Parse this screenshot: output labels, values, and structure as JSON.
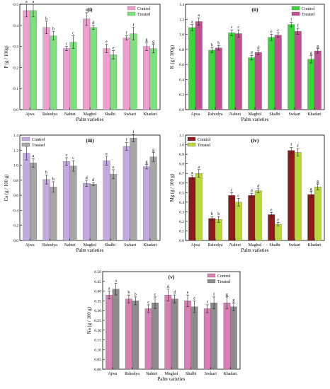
{
  "chart_data": [
    {
      "panel": "(i)",
      "type": "bar",
      "xlabel": "Palm varieties",
      "ylabel": "P (g / 100g)",
      "categories": [
        "Ajwa",
        "Rshodya",
        "Nabtet",
        "Maghol",
        "Shalbi",
        "Swkari",
        "Khadari"
      ],
      "ylim": [
        0.0,
        0.5
      ],
      "yticks": [
        "0.0",
        "0.1",
        "0.2",
        "0.3",
        "0.4",
        "0.5"
      ],
      "legend_position": "top-right",
      "colors": [
        "#ee9fd0",
        "#7ee07e"
      ],
      "series": [
        {
          "name": "Control",
          "values": [
            0.47,
            0.39,
            0.29,
            0.43,
            0.29,
            0.34,
            0.3
          ],
          "errors": [
            0.03,
            0.03,
            0.01,
            0.03,
            0.02,
            0.01,
            0.02
          ],
          "letters": [
            "a",
            "b",
            "c",
            "d",
            "e",
            "f",
            "g"
          ]
        },
        {
          "name": "Treated",
          "values": [
            0.47,
            0.35,
            0.32,
            0.39,
            0.26,
            0.36,
            0.29
          ],
          "errors": [
            0.03,
            0.02,
            0.03,
            0.01,
            0.02,
            0.03,
            0.02
          ],
          "letters": [
            "a",
            "b",
            "c",
            "d",
            "e",
            "f",
            "g"
          ]
        }
      ]
    },
    {
      "panel": "(ii)",
      "type": "bar",
      "xlabel": "Palm varieties",
      "ylabel": "K (g / 100g)",
      "categories": [
        "Ajwa",
        "Rshodya",
        "Nabtet",
        "Maghol",
        "Shalbi",
        "Swkari",
        "Khadari"
      ],
      "ylim": [
        0.0,
        1.4
      ],
      "yticks": [
        "0.0",
        "0.2",
        "0.4",
        "0.6",
        "0.8",
        "1.0",
        "1.2",
        "1.4"
      ],
      "legend_position": "top-right",
      "colors": [
        "#3bd63b",
        "#c0508f"
      ],
      "series": [
        {
          "name": "Control",
          "values": [
            1.09,
            0.79,
            1.02,
            0.69,
            0.96,
            1.13,
            0.67
          ],
          "errors": [
            0.04,
            0.03,
            0.04,
            0.03,
            0.04,
            0.03,
            0.05
          ],
          "letters": [
            "a",
            "b",
            "c",
            "d",
            "e",
            "f",
            "g"
          ]
        },
        {
          "name": "Treated",
          "values": [
            1.17,
            0.82,
            1.01,
            0.76,
            0.99,
            1.04,
            0.78
          ],
          "errors": [
            0.05,
            0.03,
            0.05,
            0.03,
            0.03,
            0.04,
            0.03
          ],
          "letters": [
            "a",
            "b",
            "c",
            "d",
            "e",
            "f",
            "g"
          ]
        }
      ]
    },
    {
      "panel": "(iii)",
      "type": "bar",
      "xlabel": "Palm varieties",
      "ylabel": "Ca (g / 100 g)",
      "categories": [
        "Ajwa",
        "Rshodya",
        "Nabtet",
        "Maghol",
        "Shalbi",
        "Swkari",
        "Khadari"
      ],
      "ylim": [
        0.0,
        1.4
      ],
      "yticks": [
        "0.0",
        "0.2",
        "0.4",
        "0.6",
        "0.8",
        "1.0",
        "1.2",
        "1.4"
      ],
      "legend_position": "top-left",
      "colors": [
        "#c4a8e0",
        "#a6a6a6"
      ],
      "series": [
        {
          "name": "Control",
          "values": [
            1.16,
            0.81,
            1.05,
            0.76,
            1.06,
            1.25,
            0.98
          ],
          "errors": [
            0.09,
            0.06,
            0.05,
            0.04,
            0.06,
            0.05,
            0.03
          ],
          "letters": [
            "a",
            "b",
            "c",
            "d",
            "e",
            "f",
            "g"
          ]
        },
        {
          "name": "Treated",
          "values": [
            1.03,
            0.71,
            0.99,
            0.75,
            0.88,
            1.36,
            1.11
          ],
          "errors": [
            0.06,
            0.07,
            0.07,
            0.02,
            0.06,
            0.05,
            0.06
          ],
          "letters": [
            "a",
            "b",
            "c",
            "d",
            "e",
            "f",
            "g"
          ]
        }
      ]
    },
    {
      "panel": "(iv)",
      "type": "bar",
      "xlabel": "Palm varieties",
      "ylabel": "Mg (g / 100 g)",
      "categories": [
        "Ajwa",
        "Rshodya",
        "Nabtet",
        "Maghol",
        "Shalbi",
        "Swkari",
        "Khadari"
      ],
      "ylim": [
        0.0,
        1.1
      ],
      "yticks": [
        "0.0",
        "0.1",
        "0.2",
        "0.3",
        "0.4",
        "0.5",
        "0.6",
        "0.7",
        "0.8",
        "0.9",
        "1.0",
        "1.1"
      ],
      "legend_position": "top-left",
      "colors": [
        "#8b1a1a",
        "#b8d83c"
      ],
      "series": [
        {
          "name": "Control",
          "values": [
            0.66,
            0.23,
            0.47,
            0.47,
            0.27,
            0.94,
            0.48
          ],
          "errors": [
            0.02,
            0.02,
            0.03,
            0.02,
            0.02,
            0.03,
            0.03
          ],
          "letters": [
            "a",
            "b",
            "c",
            "d",
            "e",
            "f",
            "g"
          ]
        },
        {
          "name": "Treated",
          "values": [
            0.7,
            0.22,
            0.4,
            0.52,
            0.17,
            0.92,
            0.56
          ],
          "errors": [
            0.04,
            0.03,
            0.04,
            0.02,
            0.02,
            0.04,
            0.03
          ],
          "letters": [
            "a",
            "b",
            "c",
            "d",
            "e",
            "f",
            "g"
          ]
        }
      ]
    },
    {
      "panel": "(v)",
      "type": "bar",
      "xlabel": "Palm varieties",
      "ylabel": "Na (g / 100 g)",
      "categories": [
        "Ajwa",
        "Rshodya",
        "Nabtet",
        "Maghol",
        "Shalbi",
        "Swkari",
        "Khadari"
      ],
      "ylim": [
        0.0,
        0.5
      ],
      "yticks": [
        "0.00",
        "0.05",
        "0.10",
        "0.15",
        "0.20",
        "0.25",
        "0.30",
        "0.35",
        "0.40",
        "0.45",
        "0.50"
      ],
      "legend_position": "top-right",
      "colors": [
        "#d87fb6",
        "#8c8c8c"
      ],
      "series": [
        {
          "name": "Control",
          "values": [
            0.38,
            0.36,
            0.31,
            0.38,
            0.35,
            0.31,
            0.34
          ],
          "errors": [
            0.02,
            0.02,
            0.02,
            0.03,
            0.03,
            0.02,
            0.03
          ],
          "letters": [
            "a",
            "b",
            "c",
            "d",
            "e",
            "f",
            "g"
          ]
        },
        {
          "name": "Treated",
          "values": [
            0.41,
            0.35,
            0.34,
            0.36,
            0.32,
            0.34,
            0.32
          ],
          "errors": [
            0.03,
            0.02,
            0.03,
            0.02,
            0.03,
            0.03,
            0.02
          ],
          "letters": [
            "a",
            "b",
            "c",
            "d",
            "e",
            "f",
            "g"
          ]
        }
      ]
    }
  ]
}
